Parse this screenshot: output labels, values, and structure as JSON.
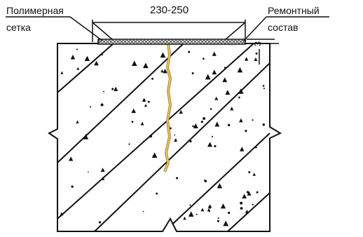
{
  "labels": {
    "polymer_mesh": [
      "Полимерная",
      "сетка"
    ],
    "repair_compound": [
      "Ремонтный",
      "состав"
    ],
    "width_dimension": "230-250",
    "depth_dimension": "3"
  },
  "colors": {
    "line": "#111111",
    "concrete_fill": "#ffffff",
    "crack": "#d9b04a",
    "crack_edge": "#a98530",
    "mesh": "#3a3a3a"
  }
}
